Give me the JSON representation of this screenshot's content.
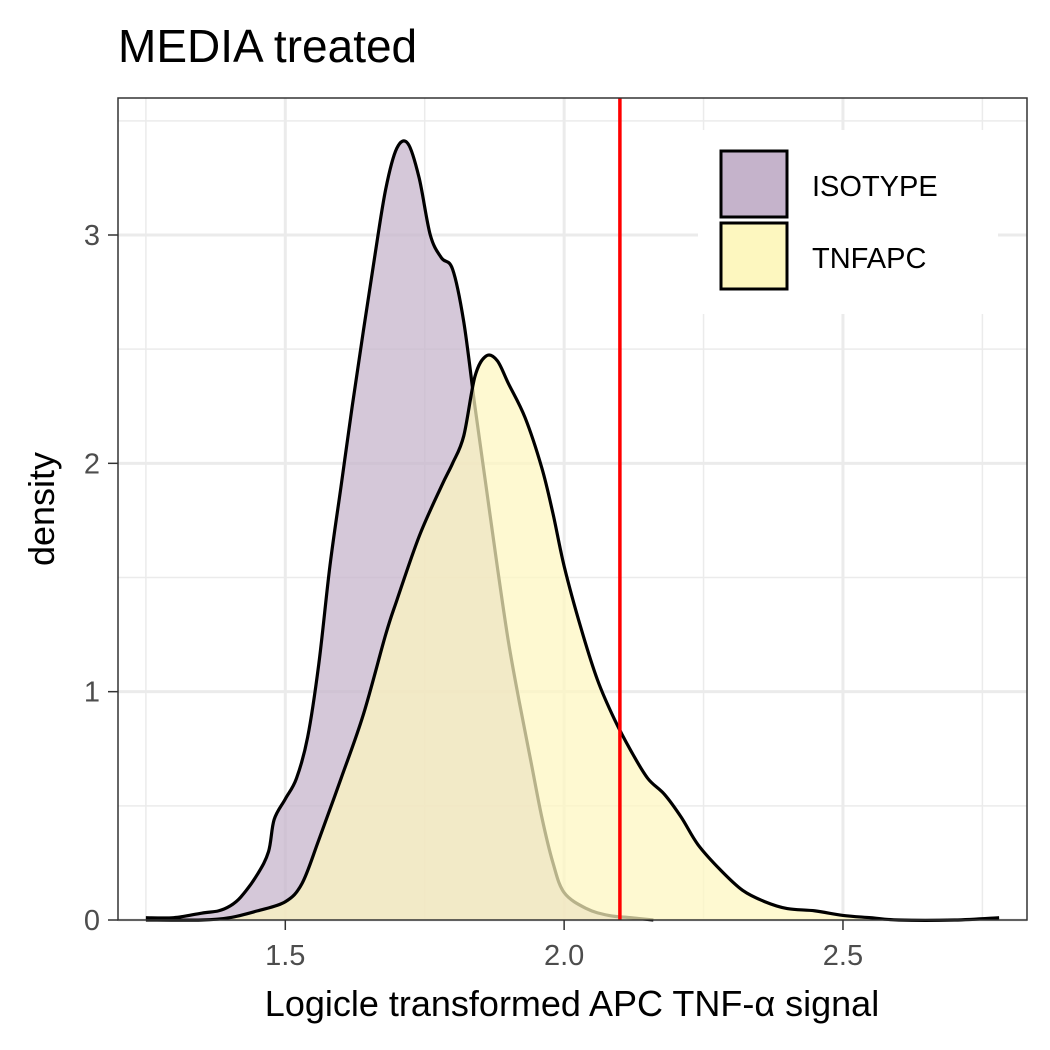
{
  "chart_data": {
    "type": "area",
    "title": "MEDIA treated",
    "xlabel": "Logicle transformed APC TNF-α signal",
    "ylabel": "density",
    "xlim": [
      1.2,
      2.83
    ],
    "ylim": [
      0,
      3.6
    ],
    "x_ticks": [
      1.5,
      2.0,
      2.5
    ],
    "x_tick_labels": [
      "1.5",
      "2.0",
      "2.5"
    ],
    "y_ticks": [
      0,
      1,
      2,
      3
    ],
    "y_tick_labels": [
      "0",
      "1",
      "2",
      "3"
    ],
    "grid": true,
    "legend_position": "top-right",
    "vline": {
      "x": 2.1,
      "color": "#ff0000"
    },
    "series": [
      {
        "name": "ISOTYPE",
        "fill": "#c5b3cb",
        "points": [
          [
            1.25,
            0.01
          ],
          [
            1.3,
            0.01
          ],
          [
            1.35,
            0.03
          ],
          [
            1.38,
            0.04
          ],
          [
            1.4,
            0.06
          ],
          [
            1.42,
            0.1
          ],
          [
            1.45,
            0.2
          ],
          [
            1.47,
            0.3
          ],
          [
            1.48,
            0.44
          ],
          [
            1.5,
            0.53
          ],
          [
            1.52,
            0.62
          ],
          [
            1.54,
            0.8
          ],
          [
            1.56,
            1.12
          ],
          [
            1.58,
            1.55
          ],
          [
            1.6,
            1.9
          ],
          [
            1.62,
            2.25
          ],
          [
            1.64,
            2.58
          ],
          [
            1.66,
            2.9
          ],
          [
            1.68,
            3.2
          ],
          [
            1.7,
            3.38
          ],
          [
            1.72,
            3.4
          ],
          [
            1.74,
            3.25
          ],
          [
            1.76,
            3.0
          ],
          [
            1.78,
            2.9
          ],
          [
            1.8,
            2.85
          ],
          [
            1.82,
            2.62
          ],
          [
            1.84,
            2.25
          ],
          [
            1.86,
            1.9
          ],
          [
            1.88,
            1.55
          ],
          [
            1.9,
            1.22
          ],
          [
            1.92,
            0.95
          ],
          [
            1.94,
            0.7
          ],
          [
            1.96,
            0.45
          ],
          [
            1.98,
            0.25
          ],
          [
            2.0,
            0.12
          ],
          [
            2.04,
            0.05
          ],
          [
            2.08,
            0.02
          ],
          [
            2.12,
            0.01
          ],
          [
            2.16,
            0.0
          ]
        ]
      },
      {
        "name": "TNFAPC",
        "fill": "#fdf7bf",
        "points": [
          [
            1.25,
            0.0
          ],
          [
            1.35,
            0.0
          ],
          [
            1.4,
            0.01
          ],
          [
            1.45,
            0.04
          ],
          [
            1.5,
            0.08
          ],
          [
            1.53,
            0.16
          ],
          [
            1.56,
            0.35
          ],
          [
            1.6,
            0.62
          ],
          [
            1.64,
            0.9
          ],
          [
            1.68,
            1.25
          ],
          [
            1.7,
            1.4
          ],
          [
            1.74,
            1.68
          ],
          [
            1.78,
            1.9
          ],
          [
            1.8,
            2.0
          ],
          [
            1.82,
            2.12
          ],
          [
            1.84,
            2.38
          ],
          [
            1.86,
            2.47
          ],
          [
            1.88,
            2.45
          ],
          [
            1.9,
            2.35
          ],
          [
            1.93,
            2.2
          ],
          [
            1.96,
            1.98
          ],
          [
            1.98,
            1.78
          ],
          [
            2.0,
            1.55
          ],
          [
            2.03,
            1.28
          ],
          [
            2.06,
            1.05
          ],
          [
            2.09,
            0.88
          ],
          [
            2.12,
            0.74
          ],
          [
            2.15,
            0.62
          ],
          [
            2.18,
            0.55
          ],
          [
            2.21,
            0.45
          ],
          [
            2.24,
            0.33
          ],
          [
            2.28,
            0.22
          ],
          [
            2.32,
            0.13
          ],
          [
            2.36,
            0.08
          ],
          [
            2.4,
            0.05
          ],
          [
            2.45,
            0.04
          ],
          [
            2.5,
            0.02
          ],
          [
            2.55,
            0.01
          ],
          [
            2.6,
            0.0
          ],
          [
            2.7,
            0.0
          ],
          [
            2.78,
            0.01
          ]
        ]
      }
    ]
  }
}
